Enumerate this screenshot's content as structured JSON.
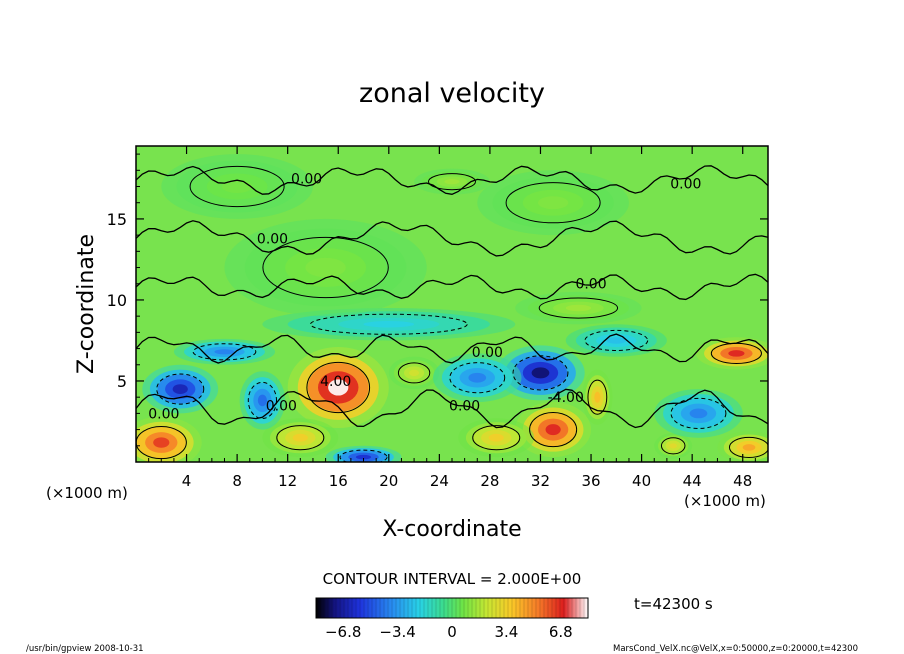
{
  "chart_data": {
    "type": "heatmap",
    "title": "zonal velocity",
    "xlabel": "X-coordinate",
    "ylabel": "Z-coordinate",
    "x_unit_left": "(×1000 m)",
    "x_unit_right": "(×1000 m)",
    "xlim": [
      0,
      50
    ],
    "ylim": [
      0,
      19.5
    ],
    "x_ticks": [
      4,
      8,
      12,
      16,
      20,
      24,
      28,
      32,
      36,
      40,
      44,
      48
    ],
    "y_ticks": [
      5,
      10,
      15
    ],
    "contour_interval_text": "CONTOUR INTERVAL = 2.000E+00",
    "time_text": "t=42300 s",
    "contour_labels": [
      {
        "x": 13.5,
        "y": 17.5,
        "text": "0.00"
      },
      {
        "x": 43.5,
        "y": 17.2,
        "text": "0.00"
      },
      {
        "x": 10.8,
        "y": 13.8,
        "text": "0.00"
      },
      {
        "x": 36.0,
        "y": 11.0,
        "text": "0.00"
      },
      {
        "x": 27.8,
        "y": 6.8,
        "text": "0.00"
      },
      {
        "x": 26.0,
        "y": 3.5,
        "text": "0.00"
      },
      {
        "x": 2.2,
        "y": 3.0,
        "text": "0.00"
      },
      {
        "x": 11.5,
        "y": 3.5,
        "text": "0.00"
      },
      {
        "x": 15.8,
        "y": 5.0,
        "text": "4.00"
      },
      {
        "x": 34.0,
        "y": 4.0,
        "text": "-4.00"
      }
    ],
    "colorbar": {
      "vmin": -8.5,
      "vmax": 8.5,
      "ticks": [
        -6.8,
        -3.4,
        0,
        3.4,
        6.8
      ],
      "tick_labels": [
        "−6.8",
        "−3.4",
        "0",
        "3.4",
        "6.8"
      ]
    },
    "features": [
      {
        "x": 16,
        "y": 4.6,
        "value": 8.5,
        "rx": 4.0,
        "ry": 2.5
      },
      {
        "x": 33,
        "y": 2.0,
        "value": 7.0,
        "rx": 3.0,
        "ry": 1.7
      },
      {
        "x": 2.0,
        "y": 1.2,
        "value": 6.5,
        "rx": 3.2,
        "ry": 1.6
      },
      {
        "x": 47.5,
        "y": 6.7,
        "value": 7.0,
        "rx": 3.2,
        "ry": 1.0
      },
      {
        "x": 48.5,
        "y": 0.9,
        "value": 4.5,
        "rx": 2.5,
        "ry": 1.0
      },
      {
        "x": 42.5,
        "y": 1.0,
        "value": 3.0,
        "rx": 1.5,
        "ry": 0.8
      },
      {
        "x": 13.0,
        "y": 1.5,
        "value": 3.5,
        "rx": 3.0,
        "ry": 1.2
      },
      {
        "x": 28.5,
        "y": 1.5,
        "value": 3.5,
        "rx": 3.0,
        "ry": 1.2
      },
      {
        "x": 36.5,
        "y": 4.0,
        "value": 4.0,
        "rx": 1.2,
        "ry": 1.7
      },
      {
        "x": 22.0,
        "y": 5.5,
        "value": 2.5,
        "rx": 2.0,
        "ry": 1.0
      },
      {
        "x": 3.5,
        "y": 4.5,
        "value": -6.5,
        "rx": 3.0,
        "ry": 1.5
      },
      {
        "x": 32.0,
        "y": 5.5,
        "value": -7.5,
        "rx": 3.5,
        "ry": 1.7
      },
      {
        "x": 27.0,
        "y": 5.2,
        "value": -4.0,
        "rx": 3.5,
        "ry": 1.5
      },
      {
        "x": 10.0,
        "y": 3.8,
        "value": -4.5,
        "rx": 1.8,
        "ry": 1.8
      },
      {
        "x": 44.5,
        "y": 3.0,
        "value": -4.0,
        "rx": 3.5,
        "ry": 1.5
      },
      {
        "x": 18.0,
        "y": 0.3,
        "value": -6.0,
        "rx": 3.0,
        "ry": 0.7
      },
      {
        "x": 7.0,
        "y": 6.8,
        "value": -4.0,
        "rx": 4.0,
        "ry": 0.8
      },
      {
        "x": 38.0,
        "y": 7.5,
        "value": -2.5,
        "rx": 4.0,
        "ry": 1.0
      },
      {
        "x": 20.0,
        "y": 8.5,
        "value": -2.0,
        "rx": 10.0,
        "ry": 1.0
      },
      {
        "x": 25.0,
        "y": 17.3,
        "value": 1.5,
        "rx": 3.0,
        "ry": 0.8
      },
      {
        "x": 15.0,
        "y": 12.0,
        "value": 1.0,
        "rx": 8.0,
        "ry": 3.0
      },
      {
        "x": 33.0,
        "y": 16.0,
        "value": 1.0,
        "rx": 6.0,
        "ry": 2.0
      },
      {
        "x": 35.0,
        "y": 9.5,
        "value": 1.5,
        "rx": 5.0,
        "ry": 1.0
      },
      {
        "x": 8.0,
        "y": 17.0,
        "value": 0.8,
        "rx": 6.0,
        "ry": 2.0
      }
    ]
  },
  "footer": {
    "left": "/usr/bin/gpview   2008-10-31",
    "right": "MarsCond_VelX.nc@VelX,x=0:50000,z=0:20000,t=42300"
  }
}
